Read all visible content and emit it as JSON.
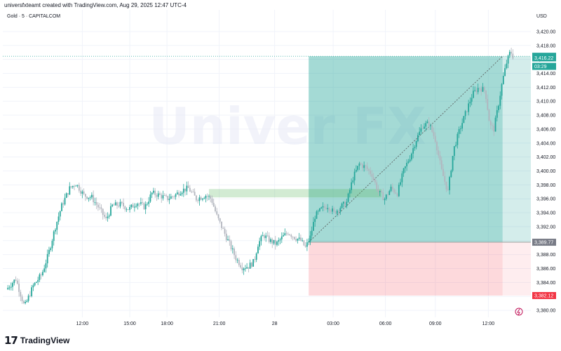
{
  "header": {
    "credit": "universfxteamt created with TradingView.com, Aug 29, 2025 12:47 UTC-4",
    "symbol": "Gold · 5 · CAPITALCOM",
    "currency": "USD"
  },
  "brand": {
    "mark": "17",
    "text": "TradingView"
  },
  "watermark": {
    "text": "Univer FX"
  },
  "colors": {
    "up": "#26a69a",
    "down": "#b2b5be",
    "profit_zone": "#26a69a",
    "loss_zone": "#f7525f",
    "supply_zone": "#4caf50",
    "current_price": "#26a69a",
    "stop_tag": "#f23645",
    "entry_tag": "#787b86"
  },
  "chart_data": {
    "type": "candlestick",
    "title": "Gold · 5 · CAPITALCOM",
    "currency": "USD",
    "ylim": [
      3379.0,
      3421.5
    ],
    "y_ticks": [
      3380,
      3382,
      3384,
      3386,
      3388,
      3390,
      3392,
      3394,
      3396,
      3398,
      3400,
      3402,
      3404,
      3406,
      3408,
      3410,
      3412,
      3414,
      3416,
      3418,
      3420
    ],
    "y_tick_labels": [
      "3,380.00",
      "3,382.00",
      "3,384.00",
      "3,386.00",
      "3,388.00",
      "3,390.00",
      "3,392.00",
      "3,394.00",
      "3,396.00",
      "3,398.00",
      "3,400.00",
      "3,402.00",
      "3,404.00",
      "3,406.00",
      "3,408.00",
      "3,410.00",
      "3,412.00",
      "3,414.00",
      "3,416.00",
      "3,418.00",
      "3,420.00"
    ],
    "x_ticks": [
      {
        "t": 9.6,
        "label": "12:00"
      },
      {
        "t": 15.6,
        "label": "15:00"
      },
      {
        "t": 20.3,
        "label": "18:00"
      },
      {
        "t": 26.9,
        "label": "21:00"
      },
      {
        "t": 33.9,
        "label": "28"
      },
      {
        "t": 41.3,
        "label": "03:00"
      },
      {
        "t": 47.9,
        "label": "06:00"
      },
      {
        "t": 54.2,
        "label": "09:00"
      },
      {
        "t": 60.9,
        "label": "12:00"
      }
    ],
    "grid": true,
    "current_price": 3416.45,
    "price_labels": [
      {
        "value": 3416.45,
        "text": "3,416.45",
        "kind": "current"
      },
      {
        "value": 3416.22,
        "text": "3,416.22",
        "kind": "current"
      },
      {
        "value": 3415.0,
        "text": "03:29",
        "kind": "countdown"
      },
      {
        "value": 3389.77,
        "text": "3,389.77",
        "kind": "entry"
      },
      {
        "value": 3382.12,
        "text": "3,382.12",
        "kind": "stop"
      }
    ],
    "position": {
      "type": "long",
      "entry": 3389.77,
      "target": 3416.45,
      "stop": 3382.12,
      "start_t": 38.2,
      "end_t": 62.7
    },
    "zone": {
      "top": 3397.4,
      "bottom": 3396.2,
      "start_t": 25.6,
      "end_t": 47.4
    },
    "series": [
      {
        "name": "Gold",
        "anchors": [
          [
            0.0,
            3383.0
          ],
          [
            1.2,
            3384.5
          ],
          [
            2.3,
            3380.5
          ],
          [
            3.4,
            3383.5
          ],
          [
            4.5,
            3385.2
          ],
          [
            5.3,
            3388.0
          ],
          [
            6.2,
            3392.0
          ],
          [
            7.0,
            3395.0
          ],
          [
            8.0,
            3397.5
          ],
          [
            8.8,
            3398.2
          ],
          [
            9.8,
            3396.5
          ],
          [
            10.8,
            3396.2
          ],
          [
            11.8,
            3394.5
          ],
          [
            12.6,
            3393.0
          ],
          [
            13.4,
            3395.0
          ],
          [
            14.5,
            3395.2
          ],
          [
            15.5,
            3394.5
          ],
          [
            16.5,
            3395.5
          ],
          [
            17.5,
            3394.8
          ],
          [
            18.4,
            3396.8
          ],
          [
            19.4,
            3396.5
          ],
          [
            20.3,
            3396.0
          ],
          [
            21.3,
            3396.5
          ],
          [
            22.1,
            3397.2
          ],
          [
            23.0,
            3397.5
          ],
          [
            24.0,
            3396.0
          ],
          [
            25.2,
            3396.5
          ],
          [
            25.9,
            3396.0
          ],
          [
            26.6,
            3393.5
          ],
          [
            27.4,
            3391.5
          ],
          [
            28.2,
            3389.5
          ],
          [
            29.0,
            3387.5
          ],
          [
            29.8,
            3386.2
          ],
          [
            30.6,
            3386.3
          ],
          [
            31.3,
            3387.0
          ],
          [
            31.8,
            3389.5
          ],
          [
            32.5,
            3390.8
          ],
          [
            33.3,
            3390.0
          ],
          [
            34.1,
            3389.5
          ],
          [
            34.9,
            3390.5
          ],
          [
            35.6,
            3391.2
          ],
          [
            36.4,
            3390.5
          ],
          [
            37.2,
            3390.0
          ],
          [
            37.8,
            3389.0
          ],
          [
            38.4,
            3390.5
          ],
          [
            39.0,
            3393.5
          ],
          [
            39.8,
            3394.5
          ],
          [
            40.6,
            3395.0
          ],
          [
            41.4,
            3394.0
          ],
          [
            42.2,
            3394.8
          ],
          [
            43.0,
            3395.5
          ],
          [
            43.8,
            3399.0
          ],
          [
            44.6,
            3401.0
          ],
          [
            45.4,
            3400.5
          ],
          [
            46.2,
            3399.5
          ],
          [
            47.0,
            3397.0
          ],
          [
            47.8,
            3396.0
          ],
          [
            48.6,
            3397.5
          ],
          [
            49.4,
            3396.8
          ],
          [
            50.2,
            3400.0
          ],
          [
            51.0,
            3402.0
          ],
          [
            51.8,
            3404.5
          ],
          [
            52.6,
            3406.5
          ],
          [
            53.4,
            3406.8
          ],
          [
            54.2,
            3404.5
          ],
          [
            55.0,
            3400.0
          ],
          [
            55.8,
            3397.0
          ],
          [
            56.5,
            3403.0
          ],
          [
            57.3,
            3406.0
          ],
          [
            58.1,
            3408.5
          ],
          [
            58.9,
            3411.0
          ],
          [
            59.7,
            3412.0
          ],
          [
            60.5,
            3411.5
          ],
          [
            61.1,
            3406.5
          ],
          [
            61.6,
            3406.0
          ],
          [
            62.1,
            3409.0
          ],
          [
            62.7,
            3413.0
          ],
          [
            63.2,
            3415.5
          ],
          [
            63.7,
            3417.2
          ],
          [
            64.0,
            3416.45
          ]
        ]
      }
    ]
  }
}
